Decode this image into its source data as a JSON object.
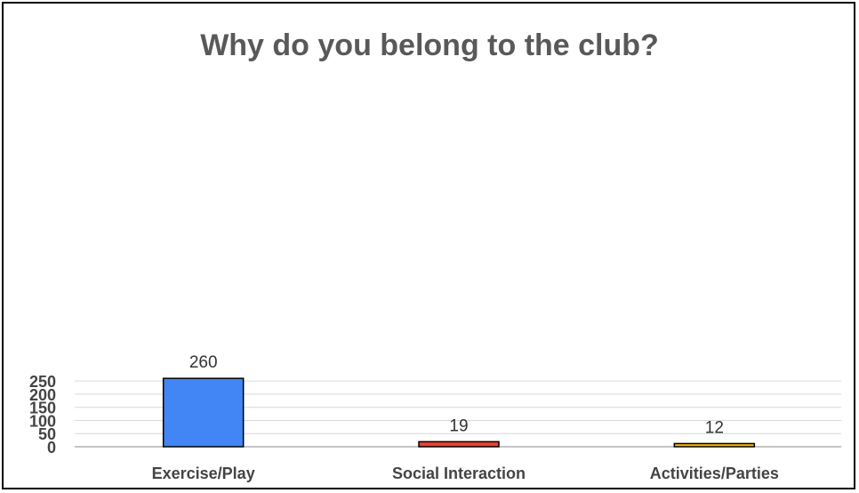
{
  "chart_data": {
    "type": "bar",
    "title": "Why do you belong to the club?",
    "xlabel": "",
    "ylabel": "",
    "categories": [
      "Exercise/Play",
      "Social Interaction",
      "Activities/Parties"
    ],
    "values": [
      260,
      19,
      12
    ],
    "data_labels": [
      "260",
      "19",
      "12"
    ],
    "colors": [
      "#4285f4",
      "#ea4335",
      "#fbbc04"
    ],
    "ylim": [
      0,
      270
    ],
    "yticks": [
      0,
      50,
      100,
      150,
      200,
      250
    ],
    "ytick_labels": [
      "0",
      "50",
      "100",
      "150",
      "200",
      "250"
    ],
    "grid": true,
    "legend": "none"
  }
}
